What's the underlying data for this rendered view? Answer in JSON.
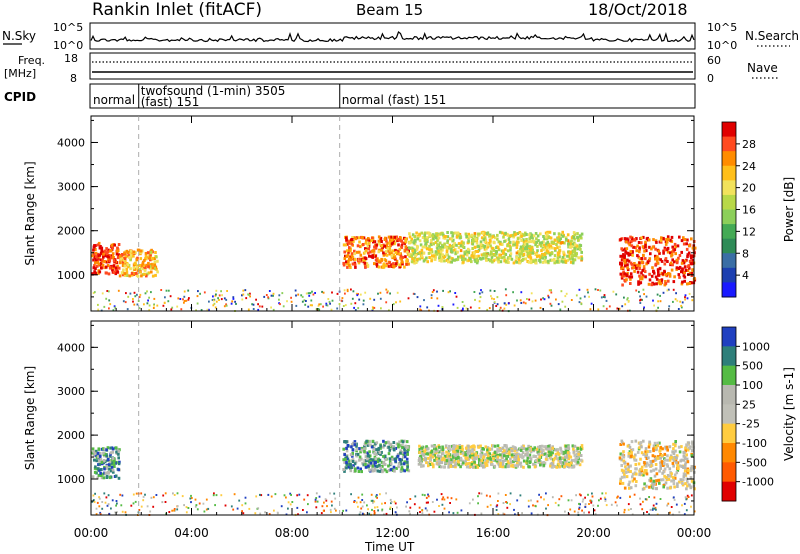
{
  "header": {
    "station": "Rankin Inlet (fitACF)",
    "beam": "Beam 15",
    "date": "18/Oct/2018"
  },
  "noise_panel": {
    "left_label": "N.Sky",
    "right_label": "N.Search",
    "left_ticks": [
      "10^5",
      "10^0"
    ],
    "right_ticks": [
      "10^5",
      "10^0"
    ]
  },
  "freq_panel": {
    "left_label_1": "Freq.",
    "left_label_2": "[MHz]",
    "right_label": "Nave",
    "left_ticks": [
      "18",
      "8"
    ],
    "right_ticks": [
      "60",
      "0"
    ]
  },
  "cpid_panel": {
    "label": "CPID",
    "segments": [
      {
        "start_hour": 0,
        "end_hour": 1.9,
        "line1": "normal",
        "line2": ""
      },
      {
        "start_hour": 1.9,
        "end_hour": 9.9,
        "line1": "twofsound (1-min) 3505",
        "line2": "(fast) 151"
      },
      {
        "start_hour": 9.9,
        "end_hour": 24,
        "line1": "normal (fast) 151",
        "line2": ""
      }
    ]
  },
  "chart_data": [
    {
      "type": "heatmap",
      "ylabel": "Slant Range [km]",
      "ylim": [
        180,
        4600
      ],
      "y_ticks": [
        1000,
        2000,
        3000,
        4000
      ],
      "x_range_hours": [
        0,
        24
      ],
      "colorbar": {
        "label": "Power [dB]",
        "ticks": [
          "28",
          "24",
          "20",
          "16",
          "12",
          "8",
          "4"
        ],
        "colors": [
          "#e00000",
          "#ff4a20",
          "#ff8c00",
          "#ffbf1a",
          "#f2e25c",
          "#b8d848",
          "#8ccf5a",
          "#44aa55",
          "#2e8b57",
          "#3a6ea5",
          "#1c3fb0",
          "#1a1aff"
        ]
      },
      "regions": [
        {
          "t0": 0.0,
          "t1": 1.1,
          "r0": 1050,
          "r1": 1750,
          "level": 0.9
        },
        {
          "t0": 1.1,
          "t1": 2.6,
          "r0": 1000,
          "r1": 1600,
          "level": 0.7
        },
        {
          "t0": 10.0,
          "t1": 12.6,
          "r0": 1200,
          "r1": 1900,
          "level": 0.8
        },
        {
          "t0": 12.6,
          "t1": 19.5,
          "r0": 1300,
          "r1": 2000,
          "level": 0.55
        },
        {
          "t0": 21.0,
          "t1": 24.0,
          "r0": 800,
          "r1": 1900,
          "level": 0.9
        }
      ]
    },
    {
      "type": "heatmap",
      "ylabel": "Slant Range [km]",
      "ylim": [
        180,
        4600
      ],
      "y_ticks": [
        1000,
        2000,
        3000,
        4000
      ],
      "x_range_hours": [
        0,
        24
      ],
      "colorbar": {
        "label": "Velocity [m s-1]",
        "ticks": [
          "1000",
          "500",
          "100",
          "25",
          "-25",
          "-100",
          "-500",
          "-1000"
        ],
        "colors": [
          "#2040c0",
          "#2e7f7a",
          "#55bb44",
          "#b8b8b0",
          "#c0c0b8",
          "#ffcc40",
          "#ff8800",
          "#ff5a00",
          "#e00000"
        ]
      },
      "regions": [
        {
          "t0": 0.0,
          "t1": 1.1,
          "r0": 1050,
          "r1": 1750,
          "level": 0.75
        },
        {
          "t0": 10.0,
          "t1": 12.6,
          "r0": 1200,
          "r1": 1900,
          "level": 0.7
        },
        {
          "t0": 13.0,
          "t1": 19.5,
          "r0": 1300,
          "r1": 1800,
          "level": 0.5
        },
        {
          "t0": 21.0,
          "t1": 24.0,
          "r0": 800,
          "r1": 1900,
          "level": 0.4
        }
      ]
    }
  ],
  "x_axis": {
    "label": "Time UT",
    "ticks": [
      "00:00",
      "04:00",
      "08:00",
      "12:00",
      "16:00",
      "20:00",
      "00:00"
    ]
  }
}
